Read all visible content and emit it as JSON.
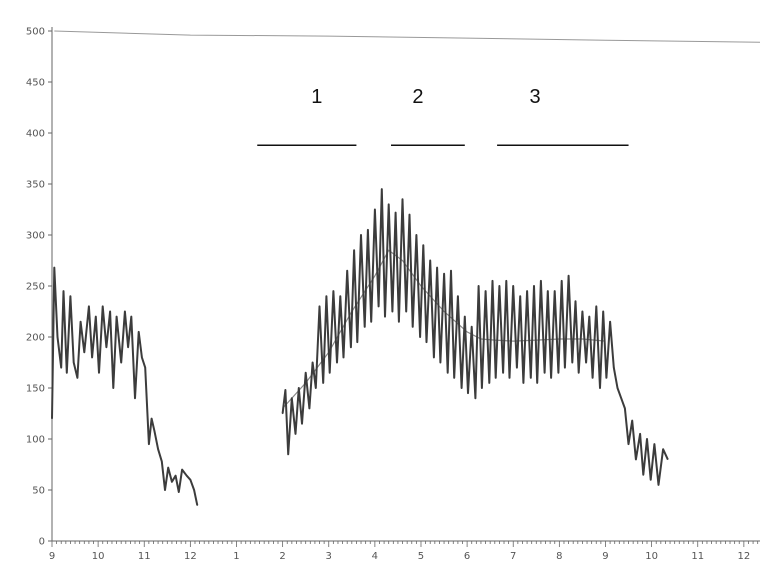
{
  "chart_data": {
    "type": "line",
    "title": "",
    "xlabel": "",
    "ylabel": "",
    "ylim": [
      0,
      500
    ],
    "grid": false,
    "legend": "none",
    "y_ticks": [
      0,
      50,
      100,
      150,
      200,
      250,
      300,
      350,
      400,
      450,
      500
    ],
    "x_tick_labels": [
      "9",
      "10",
      "11",
      "12",
      "1",
      "2",
      "3",
      "4",
      "5",
      "6",
      "7",
      "8",
      "9",
      "10",
      "11",
      "12"
    ],
    "x_range": [
      0,
      15.35
    ],
    "colors": {
      "series": "#3c3c3c",
      "trend": "#888888",
      "ceiling": "#999999",
      "annotation": "#111111",
      "axis": "#666666"
    },
    "series": [
      {
        "name": "",
        "values": [
          [
            0.0,
            120
          ],
          [
            0.05,
            268
          ],
          [
            0.12,
            200
          ],
          [
            0.2,
            170
          ],
          [
            0.25,
            245
          ],
          [
            0.32,
            165
          ],
          [
            0.4,
            240
          ],
          [
            0.47,
            175
          ],
          [
            0.55,
            160
          ],
          [
            0.62,
            215
          ],
          [
            0.7,
            185
          ],
          [
            0.8,
            230
          ],
          [
            0.87,
            180
          ],
          [
            0.95,
            220
          ],
          [
            1.02,
            165
          ],
          [
            1.1,
            230
          ],
          [
            1.18,
            190
          ],
          [
            1.26,
            225
          ],
          [
            1.33,
            150
          ],
          [
            1.4,
            220
          ],
          [
            1.5,
            175
          ],
          [
            1.58,
            225
          ],
          [
            1.65,
            190
          ],
          [
            1.72,
            220
          ],
          [
            1.8,
            140
          ],
          [
            1.88,
            205
          ],
          [
            1.95,
            180
          ],
          [
            2.02,
            170
          ],
          [
            2.1,
            95
          ],
          [
            2.16,
            120
          ],
          [
            2.22,
            108
          ],
          [
            2.3,
            90
          ],
          [
            2.38,
            78
          ],
          [
            2.45,
            50
          ],
          [
            2.52,
            72
          ],
          [
            2.6,
            58
          ],
          [
            2.68,
            64
          ],
          [
            2.75,
            48
          ],
          [
            2.82,
            70
          ],
          [
            2.92,
            64
          ],
          [
            3.0,
            60
          ],
          [
            3.08,
            50
          ],
          [
            3.15,
            35
          ]
        ]
      },
      {
        "name": "",
        "values": [
          [
            5.0,
            125
          ],
          [
            5.06,
            148
          ],
          [
            5.12,
            85
          ],
          [
            5.2,
            140
          ],
          [
            5.28,
            105
          ],
          [
            5.35,
            150
          ],
          [
            5.42,
            115
          ],
          [
            5.5,
            165
          ],
          [
            5.58,
            130
          ],
          [
            5.65,
            175
          ],
          [
            5.72,
            150
          ],
          [
            5.8,
            230
          ],
          [
            5.88,
            155
          ],
          [
            5.95,
            240
          ],
          [
            6.02,
            165
          ],
          [
            6.1,
            245
          ],
          [
            6.18,
            175
          ],
          [
            6.25,
            240
          ],
          [
            6.32,
            180
          ],
          [
            6.4,
            265
          ],
          [
            6.48,
            190
          ],
          [
            6.55,
            285
          ],
          [
            6.62,
            195
          ],
          [
            6.7,
            300
          ],
          [
            6.78,
            210
          ],
          [
            6.85,
            305
          ],
          [
            6.92,
            215
          ],
          [
            7.0,
            325
          ],
          [
            7.08,
            230
          ],
          [
            7.15,
            345
          ],
          [
            7.22,
            220
          ],
          [
            7.3,
            330
          ],
          [
            7.38,
            225
          ],
          [
            7.45,
            322
          ],
          [
            7.52,
            215
          ],
          [
            7.6,
            335
          ],
          [
            7.68,
            225
          ],
          [
            7.75,
            320
          ],
          [
            7.82,
            210
          ],
          [
            7.9,
            300
          ],
          [
            7.98,
            200
          ],
          [
            8.05,
            290
          ],
          [
            8.12,
            195
          ],
          [
            8.2,
            275
          ],
          [
            8.28,
            180
          ],
          [
            8.35,
            268
          ],
          [
            8.42,
            175
          ],
          [
            8.5,
            262
          ],
          [
            8.58,
            165
          ],
          [
            8.65,
            265
          ],
          [
            8.72,
            160
          ],
          [
            8.8,
            240
          ],
          [
            8.88,
            150
          ],
          [
            8.95,
            220
          ],
          [
            9.02,
            145
          ],
          [
            9.1,
            210
          ],
          [
            9.18,
            140
          ],
          [
            9.25,
            250
          ],
          [
            9.32,
            150
          ],
          [
            9.4,
            245
          ],
          [
            9.48,
            155
          ],
          [
            9.55,
            255
          ],
          [
            9.62,
            160
          ],
          [
            9.7,
            250
          ],
          [
            9.78,
            165
          ],
          [
            9.85,
            255
          ],
          [
            9.92,
            160
          ],
          [
            10.0,
            250
          ],
          [
            10.08,
            170
          ],
          [
            10.15,
            240
          ],
          [
            10.22,
            155
          ],
          [
            10.3,
            245
          ],
          [
            10.38,
            160
          ],
          [
            10.45,
            250
          ],
          [
            10.52,
            155
          ],
          [
            10.6,
            255
          ],
          [
            10.68,
            165
          ],
          [
            10.75,
            245
          ],
          [
            10.82,
            160
          ],
          [
            10.9,
            245
          ],
          [
            10.98,
            165
          ],
          [
            11.05,
            255
          ],
          [
            11.12,
            170
          ],
          [
            11.2,
            260
          ],
          [
            11.28,
            175
          ],
          [
            11.35,
            235
          ],
          [
            11.42,
            165
          ],
          [
            11.5,
            225
          ],
          [
            11.58,
            175
          ],
          [
            11.65,
            220
          ],
          [
            11.72,
            160
          ],
          [
            11.8,
            230
          ],
          [
            11.88,
            150
          ],
          [
            11.95,
            225
          ],
          [
            12.02,
            160
          ],
          [
            12.1,
            215
          ],
          [
            12.18,
            170
          ],
          [
            12.26,
            150
          ],
          [
            12.34,
            140
          ],
          [
            12.42,
            130
          ],
          [
            12.5,
            95
          ],
          [
            12.58,
            118
          ],
          [
            12.66,
            80
          ],
          [
            12.75,
            105
          ],
          [
            12.82,
            65
          ],
          [
            12.9,
            100
          ],
          [
            12.98,
            60
          ],
          [
            13.06,
            95
          ],
          [
            13.15,
            55
          ],
          [
            13.25,
            90
          ],
          [
            13.35,
            80
          ]
        ]
      }
    ],
    "trend_line": [
      [
        5.0,
        130
      ],
      [
        5.5,
        155
      ],
      [
        6.0,
        185
      ],
      [
        6.5,
        225
      ],
      [
        7.0,
        260
      ],
      [
        7.3,
        285
      ],
      [
        7.6,
        275
      ],
      [
        8.0,
        250
      ],
      [
        8.5,
        225
      ],
      [
        9.0,
        205
      ],
      [
        9.3,
        198
      ],
      [
        9.6,
        197
      ],
      [
        10.0,
        196
      ],
      [
        10.5,
        197
      ],
      [
        11.0,
        198
      ],
      [
        11.5,
        198
      ],
      [
        12.0,
        196
      ]
    ],
    "ceiling_line": [
      [
        0.05,
        500
      ],
      [
        3.0,
        496
      ],
      [
        6.0,
        495
      ],
      [
        9.0,
        493
      ],
      [
        12.0,
        491
      ],
      [
        15.35,
        489
      ]
    ],
    "annotations": [
      {
        "label": "1",
        "x_start": 4.45,
        "x_end": 6.6,
        "y": 388
      },
      {
        "label": "2",
        "x_start": 7.35,
        "x_end": 8.95,
        "y": 388
      },
      {
        "label": "3",
        "x_start": 9.65,
        "x_end": 12.5,
        "y": 388
      }
    ]
  }
}
